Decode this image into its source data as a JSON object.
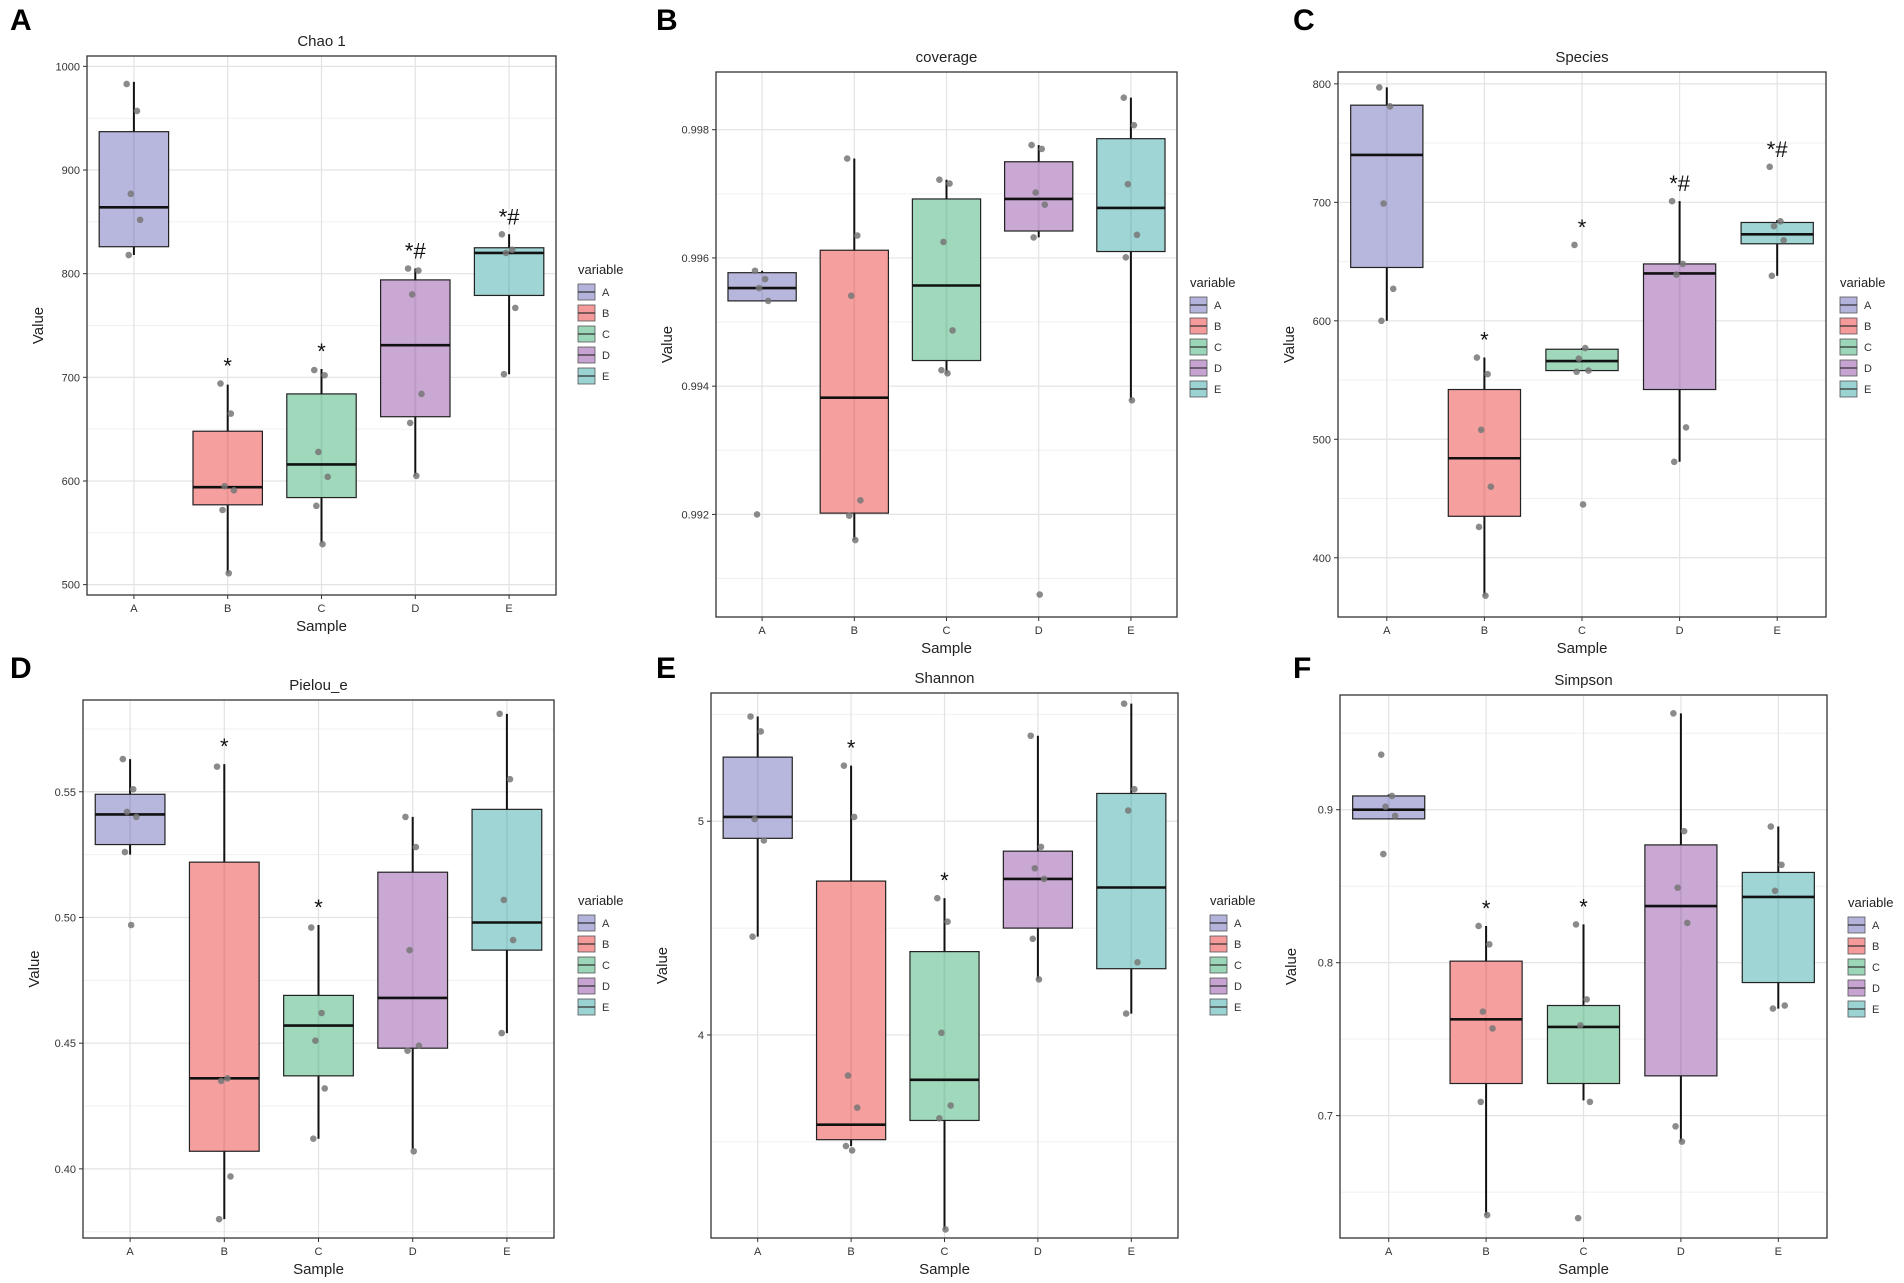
{
  "legend_title": "variable",
  "groups": [
    "A",
    "B",
    "C",
    "D",
    "E"
  ],
  "colors": {
    "A": "#b3b3db",
    "B": "#f59a9a",
    "C": "#9bd6b8",
    "D": "#c6a3d1",
    "E": "#9bd3d3",
    "point": "#777777",
    "panel_border": "#333333",
    "grid": "#e3e3e3"
  },
  "panel_labels": [
    "A",
    "B",
    "C",
    "D",
    "E",
    "F"
  ],
  "chart_data": [
    {
      "type": "boxplot",
      "panel": "A",
      "title": "Chao 1",
      "xlabel": "Sample",
      "ylabel": "Value",
      "categories": [
        "A",
        "B",
        "C",
        "D",
        "E"
      ],
      "ylim": [
        490,
        1010
      ],
      "yticks": [
        500,
        600,
        700,
        800,
        900,
        1000
      ],
      "ytick_labels": [
        "500",
        "600",
        "700",
        "800",
        "900",
        "1000"
      ],
      "boxes": [
        {
          "name": "A",
          "whisker_low": 818,
          "q1": 826,
          "median": 864,
          "q3": 937,
          "whisker_high": 985
        },
        {
          "name": "B",
          "whisker_low": 511,
          "q1": 577,
          "median": 594,
          "q3": 648,
          "whisker_high": 693
        },
        {
          "name": "C",
          "whisker_low": 540,
          "q1": 584,
          "median": 616,
          "q3": 684,
          "whisker_high": 708
        },
        {
          "name": "D",
          "whisker_low": 605,
          "q1": 662,
          "median": 731,
          "q3": 794,
          "whisker_high": 805
        },
        {
          "name": "E",
          "whisker_low": 703,
          "q1": 779,
          "median": 820,
          "q3": 825,
          "whisker_high": 838
        }
      ],
      "points": [
        [
          983,
          957,
          877,
          852,
          818
        ],
        [
          694,
          665,
          595,
          591,
          572,
          511
        ],
        [
          707,
          702,
          628,
          604,
          576,
          539
        ],
        [
          805,
          803,
          780,
          684,
          656,
          605
        ],
        [
          838,
          823,
          820,
          767,
          703
        ]
      ],
      "annotations": [
        "",
        "*",
        "*",
        "*#",
        "*#"
      ]
    },
    {
      "type": "boxplot",
      "panel": "B",
      "title": "coverage",
      "xlabel": "Sample",
      "ylabel": "Value",
      "categories": [
        "A",
        "B",
        "C",
        "D",
        "E"
      ],
      "ylim": [
        0.9904,
        0.9989
      ],
      "yticks": [
        0.992,
        0.994,
        0.996,
        0.998
      ],
      "ytick_labels": [
        "0.992",
        "0.994",
        "0.996",
        "0.998"
      ],
      "boxes": [
        {
          "name": "A",
          "whisker_low": 0.99533,
          "q1": 0.99533,
          "median": 0.99553,
          "q3": 0.99577,
          "whisker_high": 0.9958
        },
        {
          "name": "B",
          "whisker_low": 0.9916,
          "q1": 0.99202,
          "median": 0.99382,
          "q3": 0.99612,
          "whisker_high": 0.99755
        },
        {
          "name": "C",
          "whisker_low": 0.9942,
          "q1": 0.9944,
          "median": 0.99557,
          "q3": 0.99692,
          "whisker_high": 0.99722
        },
        {
          "name": "D",
          "whisker_low": 0.99632,
          "q1": 0.99642,
          "median": 0.99692,
          "q3": 0.9975,
          "whisker_high": 0.99776
        },
        {
          "name": "E",
          "whisker_low": 0.99378,
          "q1": 0.9961,
          "median": 0.99678,
          "q3": 0.99786,
          "whisker_high": 0.9985
        }
      ],
      "points": [
        [
          0.9958,
          0.99567,
          0.99553,
          0.99533,
          0.992
        ],
        [
          0.99755,
          0.99635,
          0.99541,
          0.99222,
          0.99198,
          0.9916
        ],
        [
          0.99722,
          0.99716,
          0.99625,
          0.99487,
          0.99425,
          0.9942
        ],
        [
          0.99776,
          0.9977,
          0.99702,
          0.99683,
          0.99632,
          0.99075
        ],
        [
          0.9985,
          0.99807,
          0.99715,
          0.99636,
          0.99601,
          0.99378
        ]
      ],
      "annotations": [
        "",
        "",
        "",
        "",
        ""
      ]
    },
    {
      "type": "boxplot",
      "panel": "C",
      "title": "Species",
      "xlabel": "Sample",
      "ylabel": "Value",
      "categories": [
        "A",
        "B",
        "C",
        "D",
        "E"
      ],
      "ylim": [
        350,
        810
      ],
      "yticks": [
        400,
        500,
        600,
        700,
        800
      ],
      "ytick_labels": [
        "400",
        "500",
        "600",
        "700",
        "800"
      ],
      "boxes": [
        {
          "name": "A",
          "whisker_low": 600,
          "q1": 645,
          "median": 740,
          "q3": 782,
          "whisker_high": 797
        },
        {
          "name": "B",
          "whisker_low": 368,
          "q1": 435,
          "median": 484,
          "q3": 542,
          "whisker_high": 569
        },
        {
          "name": "C",
          "whisker_low": 558,
          "q1": 558,
          "median": 566,
          "q3": 576,
          "whisker_high": 577
        },
        {
          "name": "D",
          "whisker_low": 481,
          "q1": 542,
          "median": 640,
          "q3": 648,
          "whisker_high": 701
        },
        {
          "name": "E",
          "whisker_low": 638,
          "q1": 665,
          "median": 673,
          "q3": 683,
          "whisker_high": 685
        }
      ],
      "points": [
        [
          797,
          781,
          699,
          627,
          600
        ],
        [
          569,
          555,
          508,
          460,
          426,
          368
        ],
        [
          664,
          577,
          568,
          558,
          557,
          445
        ],
        [
          701,
          648,
          639,
          510,
          481
        ],
        [
          730,
          684,
          680,
          668,
          638
        ]
      ],
      "annotations": [
        "",
        "*",
        "*",
        "*#",
        "*#"
      ]
    },
    {
      "type": "boxplot",
      "panel": "D",
      "title": "Pielou_e",
      "xlabel": "Sample",
      "ylabel": "Value",
      "categories": [
        "A",
        "B",
        "C",
        "D",
        "E"
      ],
      "ylim": [
        0.3725,
        0.5865
      ],
      "yticks": [
        0.4,
        0.45,
        0.5,
        0.55
      ],
      "ytick_labels": [
        "0.40",
        "0.45",
        "0.50",
        "0.55"
      ],
      "boxes": [
        {
          "name": "A",
          "whisker_low": 0.525,
          "q1": 0.529,
          "median": 0.541,
          "q3": 0.549,
          "whisker_high": 0.563
        },
        {
          "name": "B",
          "whisker_low": 0.38,
          "q1": 0.407,
          "median": 0.436,
          "q3": 0.522,
          "whisker_high": 0.561
        },
        {
          "name": "C",
          "whisker_low": 0.412,
          "q1": 0.437,
          "median": 0.457,
          "q3": 0.469,
          "whisker_high": 0.497
        },
        {
          "name": "D",
          "whisker_low": 0.408,
          "q1": 0.448,
          "median": 0.468,
          "q3": 0.518,
          "whisker_high": 0.54
        },
        {
          "name": "E",
          "whisker_low": 0.454,
          "q1": 0.487,
          "median": 0.498,
          "q3": 0.543,
          "whisker_high": 0.581
        }
      ],
      "points": [
        [
          0.563,
          0.551,
          0.542,
          0.54,
          0.526,
          0.497
        ],
        [
          0.56,
          0.436,
          0.435,
          0.397,
          0.38
        ],
        [
          0.496,
          0.462,
          0.451,
          0.432,
          0.412
        ],
        [
          0.54,
          0.528,
          0.487,
          0.449,
          0.447,
          0.407
        ],
        [
          0.581,
          0.555,
          0.507,
          0.491,
          0.454
        ]
      ],
      "annotations": [
        "",
        "*",
        "*",
        "",
        ""
      ]
    },
    {
      "type": "boxplot",
      "panel": "E",
      "title": "Shannon",
      "xlabel": "Sample",
      "ylabel": "Value",
      "categories": [
        "A",
        "B",
        "C",
        "D",
        "E"
      ],
      "ylim": [
        3.05,
        5.6
      ],
      "yticks": [
        4,
        5
      ],
      "ytick_labels": [
        "4",
        "5"
      ],
      "boxes": [
        {
          "name": "A",
          "whisker_low": 4.46,
          "q1": 4.92,
          "median": 5.02,
          "q3": 5.3,
          "whisker_high": 5.49
        },
        {
          "name": "B",
          "whisker_low": 3.48,
          "q1": 3.51,
          "median": 3.58,
          "q3": 4.72,
          "whisker_high": 5.26
        },
        {
          "name": "C",
          "whisker_low": 3.09,
          "q1": 3.6,
          "median": 3.79,
          "q3": 4.39,
          "whisker_high": 4.64
        },
        {
          "name": "D",
          "whisker_low": 4.26,
          "q1": 4.5,
          "median": 4.73,
          "q3": 4.86,
          "whisker_high": 5.4
        },
        {
          "name": "E",
          "whisker_low": 4.1,
          "q1": 4.31,
          "median": 4.69,
          "q3": 5.13,
          "whisker_high": 5.55
        }
      ],
      "points": [
        [
          5.49,
          5.42,
          5.01,
          4.91,
          4.46
        ],
        [
          5.26,
          5.02,
          3.81,
          3.66,
          3.48,
          3.46
        ],
        [
          4.64,
          4.53,
          4.01,
          3.67,
          3.61,
          3.09
        ],
        [
          5.4,
          4.88,
          4.78,
          4.73,
          4.45,
          4.26
        ],
        [
          5.55,
          5.15,
          5.05,
          4.34,
          4.1
        ]
      ],
      "annotations": [
        "",
        "*",
        "*",
        "",
        ""
      ]
    },
    {
      "type": "boxplot",
      "panel": "F",
      "title": "Simpson",
      "xlabel": "Sample",
      "ylabel": "Value",
      "categories": [
        "A",
        "B",
        "C",
        "D",
        "E"
      ],
      "ylim": [
        0.62,
        0.975
      ],
      "yticks": [
        0.7,
        0.8,
        0.9
      ],
      "ytick_labels": [
        "0.7",
        "0.8",
        "0.9"
      ],
      "boxes": [
        {
          "name": "A",
          "whisker_low": 0.894,
          "q1": 0.894,
          "median": 0.9,
          "q3": 0.909,
          "whisker_high": 0.91
        },
        {
          "name": "B",
          "whisker_low": 0.635,
          "q1": 0.721,
          "median": 0.763,
          "q3": 0.801,
          "whisker_high": 0.824
        },
        {
          "name": "C",
          "whisker_low": 0.71,
          "q1": 0.721,
          "median": 0.758,
          "q3": 0.772,
          "whisker_high": 0.825
        },
        {
          "name": "D",
          "whisker_low": 0.683,
          "q1": 0.726,
          "median": 0.837,
          "q3": 0.877,
          "whisker_high": 0.963
        },
        {
          "name": "E",
          "whisker_low": 0.77,
          "q1": 0.787,
          "median": 0.843,
          "q3": 0.859,
          "whisker_high": 0.889
        }
      ],
      "points": [
        [
          0.936,
          0.909,
          0.902,
          0.896,
          0.871
        ],
        [
          0.824,
          0.812,
          0.768,
          0.757,
          0.709,
          0.635
        ],
        [
          0.825,
          0.776,
          0.759,
          0.709,
          0.633
        ],
        [
          0.963,
          0.886,
          0.849,
          0.826,
          0.693,
          0.683
        ],
        [
          0.889,
          0.864,
          0.847,
          0.772,
          0.77
        ]
      ],
      "annotations": [
        "",
        "*",
        "*",
        "",
        ""
      ]
    }
  ]
}
